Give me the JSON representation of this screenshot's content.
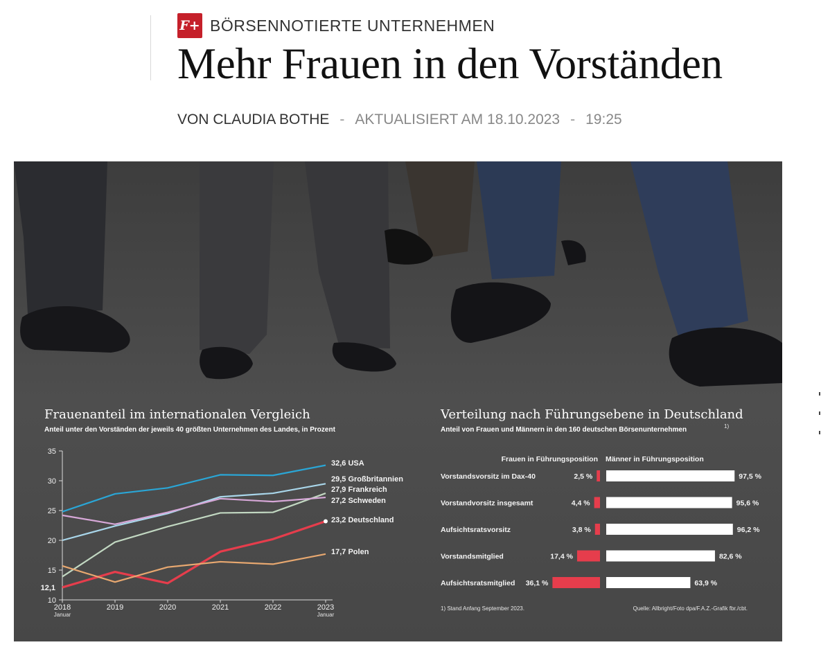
{
  "article": {
    "badge": "F+",
    "kicker": "BÖRSENNOTIERTE UNTERNEHMEN",
    "title": "Mehr Frauen in den Vorständen",
    "author": "VON CLAUDIA BOTHE",
    "separator": "-",
    "updated": "AKTUALISIERT AM 18.10.2023",
    "time": "19:25"
  },
  "chart_data": [
    {
      "type": "line",
      "title": "Frauenanteil im internationalen Vergleich",
      "subtitle": "Anteil unter den Vorständen der jeweils 40 größten Unternehmen des Landes, in Prozent",
      "x": [
        "2018",
        "2019",
        "2020",
        "2021",
        "2022",
        "2023"
      ],
      "x_sublabels": [
        "Januar",
        "",
        "",
        "",
        "",
        "Januar"
      ],
      "yticks": [
        "10",
        "15",
        "20",
        "25",
        "30",
        "35"
      ],
      "ylim": [
        10,
        35
      ],
      "series": [
        {
          "name": "USA",
          "end_label": "32,6",
          "color": "#2aa6d6",
          "values": [
            24.8,
            27.8,
            28.8,
            31.0,
            30.9,
            32.6
          ]
        },
        {
          "name": "Großbritannien",
          "end_label": "29,5",
          "color": "#a9d6ea",
          "values": [
            20.0,
            22.4,
            24.5,
            27.3,
            27.9,
            29.5
          ]
        },
        {
          "name": "Frankreich",
          "end_label": "27,9",
          "color": "#c2d8c2",
          "values": [
            13.9,
            19.7,
            22.3,
            24.6,
            24.7,
            27.9
          ]
        },
        {
          "name": "Schweden",
          "end_label": "27,2",
          "color": "#d7a8d8",
          "values": [
            24.2,
            22.7,
            24.7,
            27.0,
            26.5,
            27.2
          ]
        },
        {
          "name": "Deutschland",
          "end_label": "23,2",
          "color": "#e63d4c",
          "values": [
            12.1,
            14.7,
            12.8,
            18.1,
            20.2,
            23.2
          ],
          "emphasis": true,
          "start_label": "12,1"
        },
        {
          "name": "Polen",
          "end_label": "17,7",
          "color": "#e8a870",
          "values": [
            15.7,
            13.0,
            15.5,
            16.4,
            16.0,
            17.7
          ]
        }
      ]
    },
    {
      "type": "bar",
      "title": "Verteilung nach Führungsebene in Deutschland",
      "subtitle": "Anteil von Frauen und Männern in den 160 deutschen Börsenunternehmen",
      "subtitle_footnote": "1)",
      "header_women": "Frauen in Führungsposition",
      "header_men": "Männer in Führungsposition",
      "categories": [
        "Vorstandsvorsitz im Dax-40",
        "Vorstandvorsitz insgesamt",
        "Aufsichtsratsvorsitz",
        "Vorstandsmitglied",
        "Aufsichtsratsmitglied"
      ],
      "series": [
        {
          "name": "Frauen in Führungsposition",
          "color": "#e63d4c",
          "values": [
            2.5,
            4.4,
            3.8,
            17.4,
            36.1
          ],
          "labels": [
            "2,5 %",
            "4,4 %",
            "3,8 %",
            "17,4 %",
            "36,1 %"
          ]
        },
        {
          "name": "Männer in Führungsposition",
          "color": "#ffffff",
          "values": [
            97.5,
            95.6,
            96.2,
            82.6,
            63.9
          ],
          "labels": [
            "97,5 %",
            "95,6 %",
            "96,2 %",
            "82,6 %",
            "63,9 %"
          ]
        }
      ],
      "footnote": "1) Stand Anfang September 2023.",
      "source": "Quelle: Allbright/Foto dpa/F.A.Z.-Grafik fbr./cbt."
    }
  ]
}
